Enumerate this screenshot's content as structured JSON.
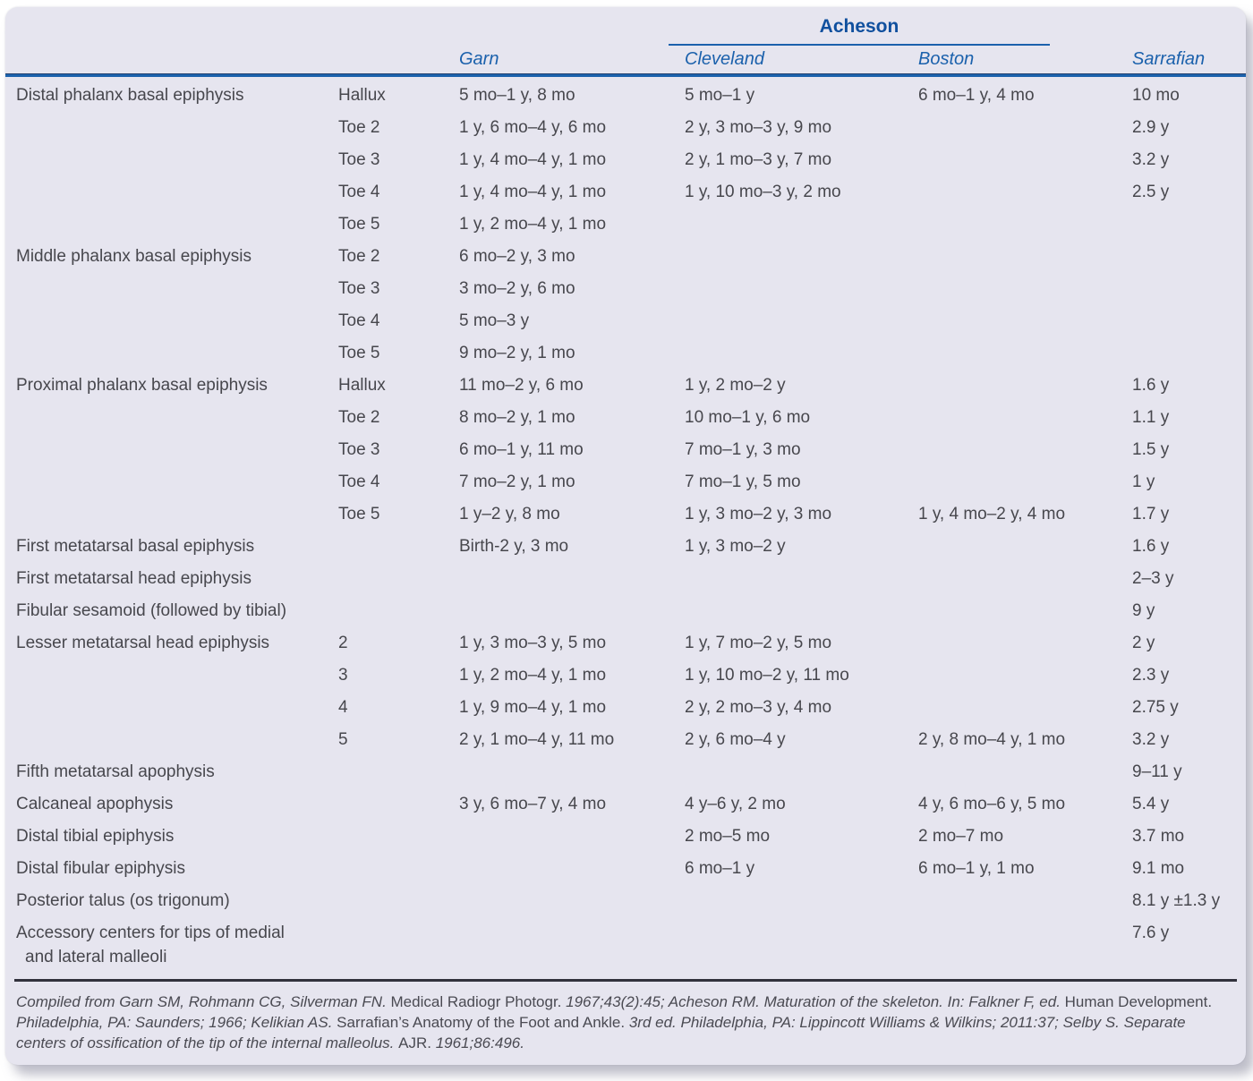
{
  "colors": {
    "page_bg": "#FFFFFF",
    "card_bg": "#E6E5EF",
    "accent_blue": "#1B61AC",
    "acheson_blue": "#10509E",
    "body_text": "#47474D",
    "footer_rule": "#31313C"
  },
  "table": {
    "group_header": "Acheson",
    "columns": {
      "garn": "Garn",
      "cleveland": "Cleveland",
      "boston": "Boston",
      "sarrafian": "Sarrafian"
    },
    "rows": [
      {
        "label": "Distal phalanx basal epiphysis",
        "site": "Hallux",
        "garn": "5 mo–1 y, 8 mo",
        "cleveland": "5 mo–1 y",
        "boston": "6 mo–1 y, 4 mo",
        "sarrafian": "10 mo"
      },
      {
        "label": "",
        "site": "Toe 2",
        "garn": "1 y, 6 mo–4 y, 6 mo",
        "cleveland": "2 y, 3 mo–3 y, 9 mo",
        "boston": "",
        "sarrafian": "2.9 y"
      },
      {
        "label": "",
        "site": "Toe 3",
        "garn": "1 y, 4 mo–4 y, 1 mo",
        "cleveland": "2 y, 1 mo–3 y, 7 mo",
        "boston": "",
        "sarrafian": "3.2 y"
      },
      {
        "label": "",
        "site": "Toe 4",
        "garn": "1 y, 4 mo–4 y, 1 mo",
        "cleveland": "1 y, 10 mo–3 y, 2 mo",
        "boston": "",
        "sarrafian": "2.5 y"
      },
      {
        "label": "",
        "site": "Toe 5",
        "garn": "1 y, 2 mo–4 y, 1 mo",
        "cleveland": "",
        "boston": "",
        "sarrafian": ""
      },
      {
        "label": "Middle phalanx basal epiphysis",
        "site": "Toe 2",
        "garn": "6 mo–2 y, 3 mo",
        "cleveland": "",
        "boston": "",
        "sarrafian": ""
      },
      {
        "label": "",
        "site": "Toe 3",
        "garn": "3 mo–2 y, 6 mo",
        "cleveland": "",
        "boston": "",
        "sarrafian": ""
      },
      {
        "label": "",
        "site": "Toe 4",
        "garn": "5 mo–3 y",
        "cleveland": "",
        "boston": "",
        "sarrafian": ""
      },
      {
        "label": "",
        "site": "Toe 5",
        "garn": "9 mo–2 y, 1 mo",
        "cleveland": "",
        "boston": "",
        "sarrafian": ""
      },
      {
        "label": "Proximal phalanx basal epiphysis",
        "site": "Hallux",
        "garn": "11 mo–2 y, 6 mo",
        "cleveland": "1 y, 2 mo–2 y",
        "boston": "",
        "sarrafian": "1.6 y"
      },
      {
        "label": "",
        "site": "Toe 2",
        "garn": "8 mo–2 y, 1 mo",
        "cleveland": "10 mo–1 y, 6 mo",
        "boston": "",
        "sarrafian": "1.1 y"
      },
      {
        "label": "",
        "site": "Toe 3",
        "garn": "6 mo–1 y, 11 mo",
        "cleveland": "7 mo–1 y, 3 mo",
        "boston": "",
        "sarrafian": "1.5 y"
      },
      {
        "label": "",
        "site": "Toe 4",
        "garn": "7 mo–2 y, 1 mo",
        "cleveland": "7 mo–1 y, 5 mo",
        "boston": "",
        "sarrafian": "1 y"
      },
      {
        "label": "",
        "site": "Toe 5",
        "garn": "1 y–2 y, 8 mo",
        "cleveland": "1 y, 3 mo–2 y, 3 mo",
        "boston": "1 y, 4 mo–2 y, 4 mo",
        "sarrafian": "1.7 y"
      },
      {
        "label": "First metatarsal basal epiphysis",
        "site": "",
        "garn": "Birth-2 y, 3 mo",
        "cleveland": "1 y, 3 mo–2 y",
        "boston": "",
        "sarrafian": "1.6 y"
      },
      {
        "label": "First metatarsal head epiphysis",
        "site": "",
        "garn": "",
        "cleveland": "",
        "boston": "",
        "sarrafian": "2–3 y"
      },
      {
        "label": "Fibular sesamoid (followed by tibial)",
        "site": "",
        "garn": "",
        "cleveland": "",
        "boston": "",
        "sarrafian": "9 y"
      },
      {
        "label": "Lesser metatarsal head epiphysis",
        "site": "2",
        "garn": "1 y, 3 mo–3 y, 5 mo",
        "cleveland": "1 y, 7 mo–2 y, 5 mo",
        "boston": "",
        "sarrafian": "2 y"
      },
      {
        "label": "",
        "site": "3",
        "garn": "1 y, 2 mo–4 y, 1 mo",
        "cleveland": "1 y, 10 mo–2 y, 11 mo",
        "boston": "",
        "sarrafian": "2.3 y"
      },
      {
        "label": "",
        "site": "4",
        "garn": "1 y, 9 mo–4 y, 1 mo",
        "cleveland": "2 y, 2 mo–3 y, 4 mo",
        "boston": "",
        "sarrafian": "2.75 y"
      },
      {
        "label": "",
        "site": "5",
        "garn": "2 y, 1 mo–4 y, 11 mo",
        "cleveland": "2 y, 6 mo–4 y",
        "boston": "2 y, 8 mo–4 y, 1 mo",
        "sarrafian": "3.2 y"
      },
      {
        "label": "Fifth metatarsal apophysis",
        "site": "",
        "garn": "",
        "cleveland": "",
        "boston": "",
        "sarrafian": "9–11 y"
      },
      {
        "label": "Calcaneal apophysis",
        "site": "",
        "garn": "3 y, 6 mo–7 y, 4 mo",
        "cleveland": "4 y–6 y, 2 mo",
        "boston": "4 y, 6 mo–6 y, 5 mo",
        "sarrafian": "5.4 y"
      },
      {
        "label": "Distal tibial epiphysis",
        "site": "",
        "garn": "",
        "cleveland": "2 mo–5 mo",
        "boston": "2 mo–7 mo",
        "sarrafian": "3.7 mo"
      },
      {
        "label": "Distal fibular epiphysis",
        "site": "",
        "garn": "",
        "cleveland": "6 mo–1 y",
        "boston": "6 mo–1 y, 1 mo",
        "sarrafian": "9.1 mo"
      },
      {
        "label": "Posterior talus (os trigonum)",
        "site": "",
        "garn": "",
        "cleveland": "",
        "boston": "",
        "sarrafian": "8.1 y ±1.3 y"
      },
      {
        "label": "Accessory centers for tips of medial",
        "label2": "and lateral malleoli",
        "site": "",
        "garn": "",
        "cleveland": "",
        "boston": "",
        "sarrafian": "7.6 y"
      }
    ],
    "footnote": [
      {
        "text": "Compiled from Garn SM, Rohmann CG, Silverman FN. ",
        "italic": true
      },
      {
        "text": "Medical Radiogr Photogr. ",
        "italic": false
      },
      {
        "text": "1967;43(2):45; Acheson RM. Maturation of the skeleton. In: Falkner F, ed. ",
        "italic": true
      },
      {
        "text": "Human Development. ",
        "italic": false
      },
      {
        "text": "Philadelphia, PA: Saunders; 1966; Kelikian AS. ",
        "italic": true
      },
      {
        "text": "Sarrafian’s Anatomy of the Foot and Ankle. ",
        "italic": false
      },
      {
        "text": "3rd ed. Philadelphia, PA: Lippincott Williams & Wilkins; 2011:37; Selby S. Separate centers of ossification of the tip of the internal malleolus. ",
        "italic": true
      },
      {
        "text": "AJR. ",
        "italic": false
      },
      {
        "text": "1961;86:496.",
        "italic": true
      }
    ]
  }
}
